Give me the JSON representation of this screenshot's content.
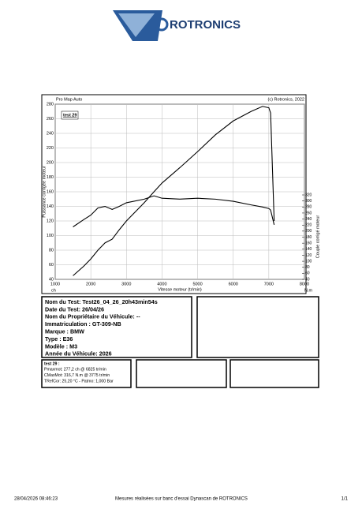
{
  "header": {
    "brand": "ROTRONICS"
  },
  "chart_data": {
    "type": "line",
    "title": "Pro Map Auto",
    "copyright": "(c) Rotronics, 2022",
    "x_label": "Vitesse moteur (tr/min)",
    "y_label": "Puissance corrigée moteur",
    "y2_label": "Couple corrigé moteur",
    "y_unit": "ch",
    "y2_unit": "N.m",
    "x": [
      1500,
      1800,
      2000,
      2200,
      2400,
      2600,
      2800,
      3000,
      3500,
      3775,
      4000,
      4500,
      5000,
      5500,
      6000,
      6500,
      6825,
      7000,
      7050,
      7150
    ],
    "series": [
      {
        "name": "test 29",
        "color": "#000000",
        "values": [
          45,
          58,
          68,
          80,
          90,
          95,
          108,
          120,
          145,
          160,
          172,
          193,
          215,
          238,
          257,
          270,
          277,
          275,
          268,
          120
        ]
      },
      {
        "color": "#000000",
        "axis": "y2",
        "values": [
          214,
          238,
          253,
          277,
          282,
          272,
          282,
          294,
          306,
          317,
          309,
          306,
          309,
          306,
          299,
          287,
          280,
          275,
          270,
          221
        ]
      }
    ],
    "xlim": [
      1000,
      8000
    ],
    "xticks": [
      1000,
      2000,
      3000,
      4000,
      5000,
      6000,
      7000,
      8000
    ],
    "ylim": [
      40,
      280
    ],
    "yticks": [
      40,
      60,
      80,
      100,
      120,
      140,
      160,
      180,
      200,
      220,
      240,
      260,
      280
    ],
    "y2lim": [
      40,
      621
    ],
    "y2ticks": [
      40,
      60,
      80,
      100,
      120,
      140,
      160,
      180,
      200,
      220,
      240,
      260,
      280,
      300,
      320
    ],
    "grid": true
  },
  "info": {
    "lines": [
      "Nom du Test: Test26_04_26_20h43min54s",
      "Date du Test: 26/04/26",
      "Nom du Propriétaire du Véhicule: --",
      "Immatriculation  : GT-309-NB",
      "Marque  : BMW",
      "Type  : E36",
      "Modèle  : M3",
      "Année du Véhicule: 2026"
    ]
  },
  "results": {
    "lines": [
      "test 29 :",
      "Pmaxmot: 277,2 ch @ 6825 tr/min",
      "CMaxMot: 316,7 N.m @ 3775 tr/min",
      "TRefCor: 25,20 °C - Patmo: 1,000 Bar"
    ]
  },
  "footer": {
    "left": "28/04/2026 08:46:23",
    "center": "Mesures réalisées sur banc d'essai Dynascan de ROTRONICS",
    "right": "1/1"
  }
}
